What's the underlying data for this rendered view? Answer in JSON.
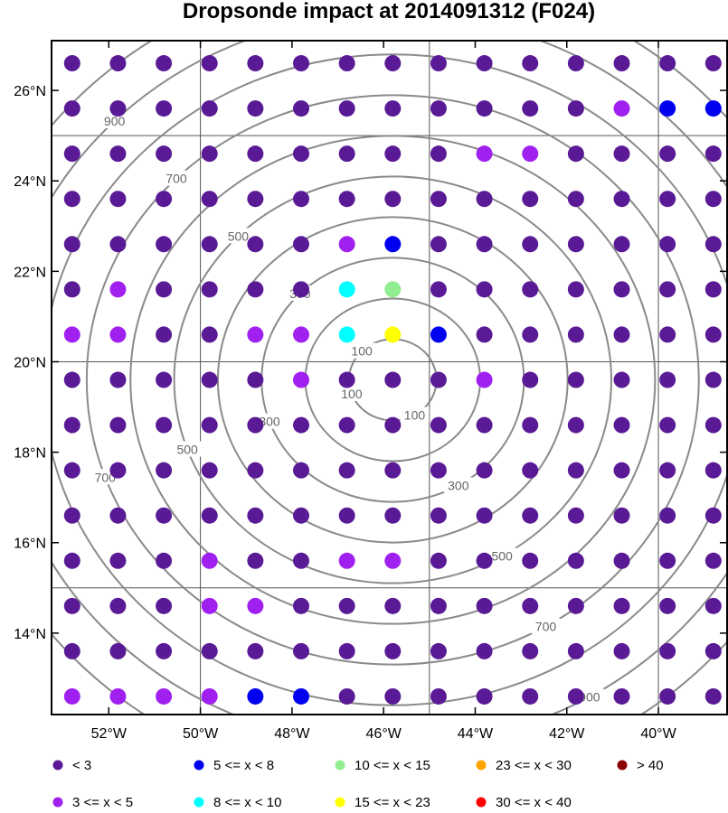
{
  "chart_data": {
    "type": "scatter",
    "title": "Dropsonde impact at 2014091312 (F024)",
    "xlim": [
      -53.25,
      -38.5
    ],
    "ylim": [
      12.2,
      27.1
    ],
    "x_ticks": [
      -52,
      -50,
      -48,
      -46,
      -44,
      -42,
      -40
    ],
    "x_tick_labels": [
      "52°W",
      "50°W",
      "48°W",
      "46°W",
      "44°W",
      "42°W",
      "40°W"
    ],
    "y_ticks": [
      14,
      16,
      18,
      20,
      22,
      24,
      26
    ],
    "y_tick_labels": [
      "14°N",
      "16°N",
      "18°N",
      "20°N",
      "22°N",
      "24°N",
      "26°N"
    ],
    "grid_lons": [
      -50,
      -45,
      -40
    ],
    "grid_lats": [
      15,
      20,
      25
    ],
    "grid_lon_values": [
      -52.8,
      -51.8,
      -50.8,
      -49.8,
      -48.8,
      -47.8,
      -46.8,
      -45.8,
      -44.8,
      -43.8,
      -42.8,
      -41.8,
      -40.8,
      -39.8,
      -38.8
    ],
    "grid_lat_values": [
      26.6,
      25.6,
      24.6,
      23.6,
      22.6,
      21.6,
      20.6,
      19.6,
      18.6,
      17.6,
      16.6,
      15.6,
      14.6,
      13.6,
      12.6
    ],
    "classes": [
      {
        "label": "<  3",
        "color": "#5a1a96"
      },
      {
        "label": "3 <= x <  5",
        "color": "#a020f0"
      },
      {
        "label": "5 <= x <  8",
        "color": "#0000f0"
      },
      {
        "label": "8 <= x < 10",
        "color": "#00ffff"
      },
      {
        "label": "10 <= x < 15",
        "color": "#90ee90"
      },
      {
        "label": "15 <= x < 23",
        "color": "#ffff00"
      },
      {
        "label": "23 <= x < 30",
        "color": "#ffa500"
      },
      {
        "label": "30 <= x < 40",
        "color": "#ff0000"
      },
      {
        "label": "> 40",
        "color": "#8b0000"
      }
    ],
    "impact_class_grid": [
      [
        0,
        0,
        0,
        0,
        0,
        0,
        0,
        0,
        0,
        0,
        0,
        0,
        0,
        0,
        0
      ],
      [
        0,
        0,
        0,
        0,
        0,
        0,
        0,
        0,
        0,
        0,
        0,
        0,
        1,
        2,
        2
      ],
      [
        0,
        0,
        0,
        0,
        0,
        0,
        0,
        0,
        0,
        1,
        1,
        0,
        0,
        0,
        0
      ],
      [
        0,
        0,
        0,
        0,
        0,
        0,
        0,
        0,
        0,
        0,
        0,
        0,
        0,
        0,
        0
      ],
      [
        0,
        0,
        0,
        0,
        0,
        0,
        1,
        2,
        0,
        0,
        0,
        0,
        0,
        0,
        0
      ],
      [
        0,
        1,
        0,
        0,
        0,
        0,
        3,
        4,
        0,
        0,
        0,
        0,
        0,
        0,
        0
      ],
      [
        1,
        1,
        0,
        0,
        1,
        1,
        3,
        5,
        2,
        0,
        0,
        0,
        0,
        0,
        0
      ],
      [
        0,
        0,
        0,
        0,
        0,
        1,
        0,
        0,
        0,
        1,
        0,
        0,
        0,
        0,
        0
      ],
      [
        0,
        0,
        0,
        0,
        0,
        0,
        0,
        0,
        0,
        0,
        0,
        0,
        0,
        0,
        0
      ],
      [
        0,
        0,
        0,
        0,
        0,
        0,
        0,
        0,
        0,
        0,
        0,
        0,
        0,
        0,
        0
      ],
      [
        0,
        0,
        0,
        0,
        0,
        0,
        0,
        0,
        0,
        0,
        0,
        0,
        0,
        0,
        0
      ],
      [
        0,
        0,
        0,
        1,
        0,
        0,
        1,
        1,
        0,
        0,
        0,
        0,
        0,
        0,
        0
      ],
      [
        0,
        0,
        0,
        1,
        1,
        0,
        0,
        0,
        0,
        0,
        0,
        0,
        0,
        0,
        0
      ],
      [
        0,
        0,
        0,
        0,
        0,
        0,
        0,
        0,
        0,
        0,
        0,
        0,
        0,
        0,
        0
      ],
      [
        1,
        1,
        1,
        1,
        2,
        2,
        0,
        0,
        0,
        0,
        0,
        0,
        0,
        0,
        0
      ]
    ],
    "contour_center": [
      -45.8,
      19.6
    ],
    "contour_radii_km": [
      100,
      200,
      300,
      400,
      500,
      600,
      700,
      800,
      900,
      1000
    ],
    "contour_labels": [
      {
        "text": "100",
        "radius_km": 100
      },
      {
        "text": "300",
        "radius_km": 300
      },
      {
        "text": "500",
        "radius_km": 500
      },
      {
        "text": "700",
        "radius_km": 700
      },
      {
        "text": "900",
        "radius_km": 900
      }
    ],
    "grid": true,
    "legend_position": "bottom"
  }
}
